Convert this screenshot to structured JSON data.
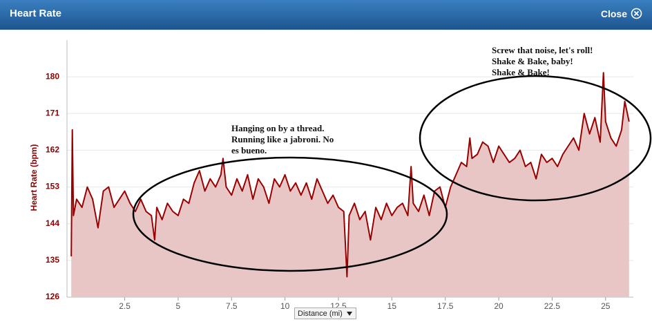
{
  "header": {
    "close": "Close"
  },
  "chart_data": {
    "type": "line",
    "title": "Heart Rate",
    "y_label": "Heart Rate (bpm)",
    "x_label": "Distance (mi)",
    "color": "#990000",
    "fill": "#e8c6c6",
    "grid": true,
    "xlim": [
      -0.2,
      26.3
    ],
    "ylim": [
      126,
      189
    ],
    "xticks": [
      2.5,
      5,
      7.5,
      10,
      12.5,
      15,
      17.5,
      20,
      22.5,
      25
    ],
    "yticks": [
      126,
      135,
      144,
      153,
      162,
      171,
      180
    ],
    "x": [
      0,
      0.05,
      0.1,
      0.25,
      0.5,
      0.75,
      1.0,
      1.25,
      1.5,
      1.75,
      2.0,
      2.25,
      2.5,
      2.75,
      3.0,
      3.25,
      3.5,
      3.75,
      3.9,
      4.0,
      4.25,
      4.5,
      4.75,
      5.0,
      5.25,
      5.5,
      5.75,
      6.0,
      6.25,
      6.5,
      6.75,
      7.0,
      7.1,
      7.25,
      7.5,
      7.75,
      8.0,
      8.25,
      8.5,
      8.75,
      9.0,
      9.25,
      9.5,
      9.75,
      10.0,
      10.25,
      10.5,
      10.75,
      11.0,
      11.25,
      11.5,
      11.75,
      12.0,
      12.25,
      12.5,
      12.75,
      12.9,
      13.0,
      13.25,
      13.5,
      13.75,
      14.0,
      14.25,
      14.5,
      14.75,
      15.0,
      15.25,
      15.5,
      15.75,
      15.9,
      16.0,
      16.25,
      16.5,
      16.75,
      17.0,
      17.25,
      17.5,
      17.75,
      18.0,
      18.25,
      18.5,
      18.65,
      18.75,
      19.0,
      19.25,
      19.5,
      19.75,
      20.0,
      20.25,
      20.5,
      20.75,
      21.0,
      21.25,
      21.5,
      21.75,
      22.0,
      22.25,
      22.5,
      22.75,
      23.0,
      23.25,
      23.5,
      23.75,
      24.0,
      24.25,
      24.5,
      24.75,
      24.9,
      25.0,
      25.25,
      25.5,
      25.75,
      25.9,
      26.1
    ],
    "values": [
      136,
      167,
      146,
      150,
      148,
      153,
      150,
      143,
      152,
      153,
      148,
      150,
      152,
      149,
      147,
      150,
      147,
      146,
      140,
      148,
      145,
      149,
      147,
      146,
      150,
      149,
      154,
      157,
      152,
      155,
      153,
      156,
      160,
      153,
      151,
      155,
      152,
      156,
      150,
      155,
      153,
      149,
      155,
      153,
      156,
      152,
      154,
      151,
      154,
      150,
      155,
      152,
      149,
      151,
      148,
      147,
      131,
      146,
      149,
      145,
      147,
      140,
      148,
      145,
      149,
      146,
      148,
      149,
      146,
      158,
      149,
      147,
      151,
      146,
      152,
      153,
      148,
      153,
      156,
      159,
      158,
      165,
      160,
      161,
      164,
      163,
      159,
      163,
      161,
      159,
      160,
      162,
      158,
      159,
      155,
      161,
      159,
      160,
      158,
      161,
      163,
      165,
      162,
      171,
      166,
      170,
      164,
      181,
      169,
      165,
      163,
      167,
      174,
      169
    ],
    "annotations": [
      [
        "Hanging on by a thread.",
        "Running like a jabroni. No",
        "es bueno."
      ],
      [
        "Screw that noise, let's roll!",
        "Shake & Bake, baby!",
        "Shake & Bake!"
      ]
    ]
  }
}
